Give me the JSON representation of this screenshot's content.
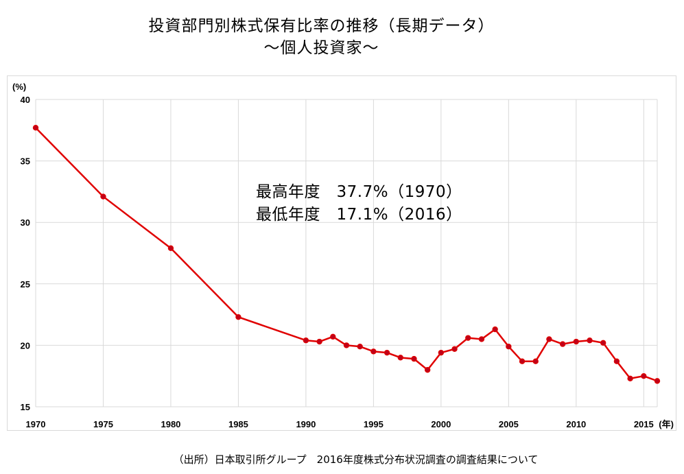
{
  "title": "投資部門別株式保有比率の推移（長期データ）",
  "subtitle": "〜個人投資家〜",
  "annotations": [
    "最高年度　37.7%（1970）",
    "最低年度　17.1%（2016）"
  ],
  "source": "（出所）日本取引所グループ　2016年度株式分布状況調査の調査結果について",
  "colors": {
    "line": "#e00000",
    "marker_fill": "#c0001a",
    "grid": "#d9d9d9"
  },
  "chart_data": {
    "type": "line",
    "ylabel": "(%)",
    "xlabel": "(年)",
    "ylim": [
      15,
      40
    ],
    "yticks": [
      15,
      20,
      25,
      30,
      35,
      40
    ],
    "xlim": [
      1970,
      2016
    ],
    "xticks": [
      1970,
      1975,
      1980,
      1985,
      1990,
      1995,
      2000,
      2005,
      2010,
      2015
    ],
    "grid": true,
    "series": [
      {
        "x": [
          1970,
          1975,
          1980,
          1985,
          1990,
          1991,
          1992,
          1993,
          1994,
          1995,
          1996,
          1997,
          1998,
          1999,
          2000,
          2001,
          2002,
          2003,
          2004,
          2005,
          2006,
          2007,
          2008,
          2009,
          2010,
          2011,
          2012,
          2013,
          2014,
          2015,
          2016
        ],
        "y": [
          37.7,
          32.1,
          27.9,
          22.3,
          20.4,
          20.3,
          20.7,
          20.0,
          19.9,
          19.5,
          19.4,
          19.0,
          18.9,
          18.0,
          19.4,
          19.7,
          20.6,
          20.5,
          21.3,
          19.9,
          18.7,
          18.7,
          20.5,
          20.1,
          20.3,
          20.4,
          20.2,
          18.7,
          17.3,
          17.5,
          17.1
        ]
      }
    ]
  }
}
